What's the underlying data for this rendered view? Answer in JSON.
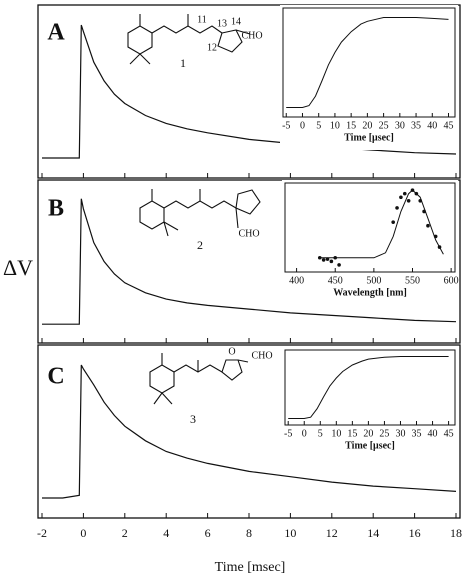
{
  "x_axis": {
    "label": "Time [msec]",
    "xlim": [
      -2,
      18
    ],
    "xticks": [
      -2,
      0,
      2,
      4,
      6,
      8,
      10,
      12,
      14,
      16,
      18
    ]
  },
  "y_label": "ΔV",
  "chart_data": [
    {
      "type": "line",
      "panel": "A",
      "compound": "1",
      "molecule_labels": [
        "CHO",
        "11",
        "12",
        "13",
        "14"
      ],
      "ylim": [
        -0.15,
        1.15
      ],
      "color": "#111111",
      "x": [
        -2,
        -1,
        -0.2,
        -0.1,
        0,
        0.5,
        1,
        1.5,
        2,
        3,
        4,
        5,
        6,
        8,
        10,
        12,
        14,
        16,
        18
      ],
      "values": [
        0,
        0,
        0,
        1,
        0.95,
        0.72,
        0.58,
        0.48,
        0.41,
        0.32,
        0.26,
        0.22,
        0.19,
        0.14,
        0.11,
        0.08,
        0.06,
        0.04,
        0.03
      ],
      "inset": {
        "xlabel": "Time [μsec]",
        "xlim": [
          -6,
          47
        ],
        "xticks": [
          -5,
          0,
          5,
          10,
          15,
          20,
          25,
          30,
          35,
          40,
          45
        ],
        "ylim": [
          -0.05,
          1.1
        ],
        "series": [
          {
            "type": "line",
            "x": [
              -5,
              0,
              2,
              4,
              6,
              8,
              10,
              12,
              15,
              18,
              20,
              25,
              30,
              35,
              40,
              45
            ],
            "values": [
              0.05,
              0.05,
              0.07,
              0.17,
              0.33,
              0.5,
              0.63,
              0.74,
              0.85,
              0.93,
              0.96,
              1,
              1,
              1,
              0.99,
              0.98
            ]
          }
        ]
      }
    },
    {
      "type": "line",
      "panel": "B",
      "compound": "2",
      "molecule_labels": [
        "CHO"
      ],
      "ylim": [
        -0.15,
        1.15
      ],
      "color": "#111111",
      "x": [
        -2,
        -1,
        -0.2,
        -0.1,
        0,
        0.5,
        1,
        1.5,
        2,
        3,
        4,
        5,
        6,
        8,
        10,
        12,
        14,
        16,
        18
      ],
      "values": [
        0,
        0,
        0,
        1,
        0.92,
        0.65,
        0.5,
        0.4,
        0.33,
        0.25,
        0.2,
        0.17,
        0.15,
        0.12,
        0.09,
        0.07,
        0.05,
        0.03,
        0.02
      ],
      "inset": {
        "xlabel": "Wavelength [nm]",
        "xlim": [
          385,
          605
        ],
        "xticks": [
          400,
          450,
          500,
          550,
          600
        ],
        "ylim": [
          -0.15,
          1.1
        ],
        "series": [
          {
            "type": "scatter",
            "x": [
              430,
              435,
              440,
              445,
              450,
              455,
              525,
              530,
              535,
              540,
              545,
              550,
              555,
              560,
              565,
              570,
              580,
              585
            ],
            "values": [
              0.05,
              0.02,
              0.03,
              0,
              0.05,
              -0.05,
              0.55,
              0.75,
              0.9,
              0.95,
              0.85,
              1,
              0.95,
              0.85,
              0.7,
              0.5,
              0.35,
              0.2
            ]
          },
          {
            "type": "line",
            "x": [
              430,
              460,
              500,
              515,
              525,
              535,
              545,
              550,
              560,
              570,
              580,
              590
            ],
            "values": [
              0.05,
              0.05,
              0.05,
              0.12,
              0.35,
              0.7,
              0.95,
              1,
              0.9,
              0.6,
              0.3,
              0.1
            ]
          }
        ]
      }
    },
    {
      "type": "line",
      "panel": "C",
      "compound": "3",
      "molecule_labels": [
        "CHO",
        "O"
      ],
      "ylim": [
        -0.15,
        1.15
      ],
      "color": "#111111",
      "x": [
        -2,
        -1,
        -0.2,
        -0.1,
        0,
        0.5,
        1,
        1.5,
        2,
        3,
        4,
        5,
        6,
        8,
        10,
        12,
        14,
        16,
        18
      ],
      "values": [
        0,
        0,
        0.02,
        1,
        0.97,
        0.85,
        0.72,
        0.62,
        0.54,
        0.43,
        0.35,
        0.3,
        0.26,
        0.2,
        0.16,
        0.12,
        0.09,
        0.07,
        0.05
      ],
      "inset": {
        "xlabel": "Time [μsec]",
        "xlim": [
          -6,
          47
        ],
        "xticks": [
          -5,
          0,
          5,
          10,
          15,
          20,
          25,
          30,
          35,
          40,
          45
        ],
        "ylim": [
          -0.05,
          1.1
        ],
        "series": [
          {
            "type": "line",
            "x": [
              -5,
              0,
              2,
              4,
              6,
              8,
              10,
              12,
              15,
              18,
              20,
              25,
              30,
              35,
              40,
              45
            ],
            "values": [
              0.05,
              0.05,
              0.07,
              0.2,
              0.38,
              0.55,
              0.67,
              0.77,
              0.87,
              0.93,
              0.96,
              0.99,
              1,
              1,
              1,
              1
            ]
          }
        ]
      }
    }
  ]
}
